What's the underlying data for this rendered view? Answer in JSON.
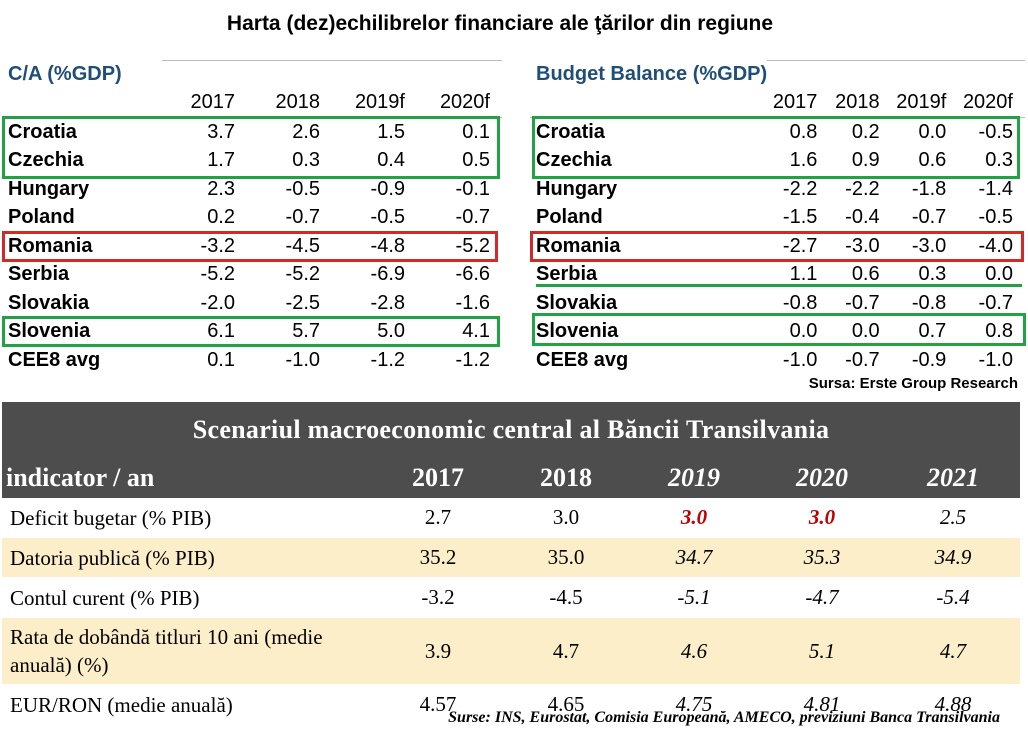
{
  "title": "Harta (dez)echilibrelor financiare ale ţărilor din regiune",
  "ca_table": {
    "title": "C/A (%GDP)",
    "years": [
      "2017",
      "2018",
      "2019f",
      "2020f"
    ],
    "rows": [
      {
        "country": "Croatia",
        "values": [
          "3.7",
          "2.6",
          "1.5",
          "0.1"
        ]
      },
      {
        "country": "Czechia",
        "values": [
          "1.7",
          "0.3",
          "0.4",
          "0.5"
        ]
      },
      {
        "country": "Hungary",
        "values": [
          "2.3",
          "-0.5",
          "-0.9",
          "-0.1"
        ]
      },
      {
        "country": "Poland",
        "values": [
          "0.2",
          "-0.7",
          "-0.5",
          "-0.7"
        ]
      },
      {
        "country": "Romania",
        "values": [
          "-3.2",
          "-4.5",
          "-4.8",
          "-5.2"
        ]
      },
      {
        "country": "Serbia",
        "values": [
          "-5.2",
          "-5.2",
          "-6.9",
          "-6.6"
        ]
      },
      {
        "country": "Slovakia",
        "values": [
          "-2.0",
          "-2.5",
          "-2.8",
          "-1.6"
        ]
      },
      {
        "country": "Slovenia",
        "values": [
          "6.1",
          "5.7",
          "5.0",
          "4.1"
        ]
      },
      {
        "country": "CEE8 avg",
        "values": [
          "0.1",
          "-1.0",
          "-1.2",
          "-1.2"
        ]
      }
    ]
  },
  "budget_table": {
    "title": "Budget Balance (%GDP)",
    "years": [
      "2017",
      "2018",
      "2019f",
      "2020f"
    ],
    "rows": [
      {
        "country": "Croatia",
        "values": [
          "0.8",
          "0.2",
          "0.0",
          "-0.5"
        ]
      },
      {
        "country": "Czechia",
        "values": [
          "1.6",
          "0.9",
          "0.6",
          "0.3"
        ]
      },
      {
        "country": "Hungary",
        "values": [
          "-2.2",
          "-2.2",
          "-1.8",
          "-1.4"
        ]
      },
      {
        "country": "Poland",
        "values": [
          "-1.5",
          "-0.4",
          "-0.7",
          "-0.5"
        ]
      },
      {
        "country": "Romania",
        "values": [
          "-2.7",
          "-3.0",
          "-3.0",
          "-4.0"
        ]
      },
      {
        "country": "Serbia",
        "values": [
          "1.1",
          "0.6",
          "0.3",
          "0.0"
        ]
      },
      {
        "country": "Slovakia",
        "values": [
          "-0.8",
          "-0.7",
          "-0.8",
          "-0.7"
        ]
      },
      {
        "country": "Slovenia",
        "values": [
          "0.0",
          "0.0",
          "0.7",
          "0.8"
        ]
      },
      {
        "country": "CEE8 avg",
        "values": [
          "-1.0",
          "-0.7",
          "-0.9",
          "-1.0"
        ]
      }
    ]
  },
  "source_top": "Sursa: Erste Group Research",
  "scenario": {
    "title": "Scenariul macroeconomic central al Băncii Transilvania",
    "header_label": "indicator / an",
    "years": [
      "2017",
      "2018",
      "2019",
      "2020",
      "2021"
    ],
    "rows": [
      {
        "label": "Deficit bugetar (% PIB)",
        "values": [
          "2.7",
          "3.0",
          "3.0",
          "3.0",
          "2.5"
        ]
      },
      {
        "label": "Datoria publică (% PIB)",
        "values": [
          "35.2",
          "35.0",
          "34.7",
          "35.3",
          "34.9"
        ]
      },
      {
        "label": "Contul curent (% PIB)",
        "values": [
          "-3.2",
          "-4.5",
          "-5.1",
          "-4.7",
          "-5.4"
        ]
      },
      {
        "label": "Rata de dobândă titluri 10 ani (medie anuală) (%)",
        "values": [
          "3.9",
          "4.7",
          "4.6",
          "5.1",
          "4.7"
        ]
      },
      {
        "label": "EUR/RON (medie anuală)",
        "values": [
          "4.57",
          "4.65",
          "4.75",
          "4.81",
          "4.88"
        ]
      }
    ]
  },
  "source_bottom": "Surse: INS, Eurostat, Comisia Europeană, AMECO, previziuni Banca Transilvania",
  "colors": {
    "green_box": "#22a244",
    "red_box": "#d62828",
    "header_blue": "#1f4e79",
    "banner_bg": "#4d4d4d",
    "alt_row": "#fbeec8",
    "red_value": "#c00000"
  }
}
